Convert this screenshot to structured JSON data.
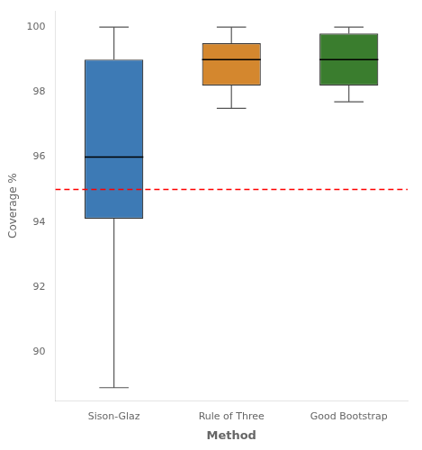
{
  "chart_data": {
    "type": "box",
    "categories": [
      "Sison-Glaz",
      "Rule of Three",
      "Good Bootstrap"
    ],
    "colors": [
      "#3d7ab5",
      "#d4872e",
      "#3a7d2e"
    ],
    "boxes": [
      {
        "whislo": 88.9,
        "q1": 94.1,
        "med": 96.0,
        "q3": 99.0,
        "whishi": 100.0
      },
      {
        "whislo": 97.5,
        "q1": 98.2,
        "med": 99.0,
        "q3": 99.5,
        "whishi": 100.0
      },
      {
        "whislo": 97.7,
        "q1": 98.2,
        "med": 99.0,
        "q3": 99.8,
        "whishi": 100.0
      }
    ],
    "ylabel": "Coverage %",
    "xlabel": "Method",
    "ylim": [
      88.5,
      100.5
    ],
    "yticks": [
      90,
      92,
      94,
      96,
      98,
      100
    ],
    "reference_line": {
      "value": 95.0,
      "color": "red",
      "line_style": "dashed"
    },
    "grid": false
  }
}
